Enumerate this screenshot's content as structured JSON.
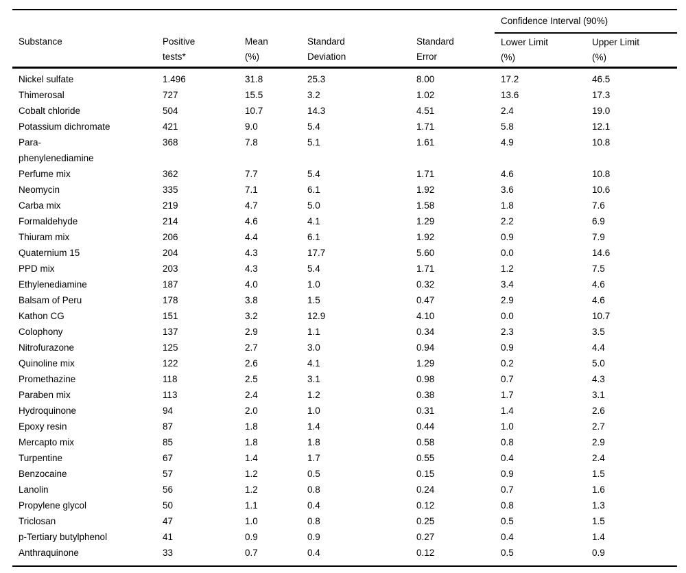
{
  "colors": {
    "background": "#ffffff",
    "text": "#000000",
    "rule": "#000000"
  },
  "table": {
    "spanner": "Confidence Interval (90%)",
    "columns": [
      "Substance",
      "Positive\ntests*",
      "Mean\n(%)",
      "Standard\nDeviation",
      "Standard\nError",
      "Lower Limit\n(%)",
      "Upper Limit\n(%)"
    ],
    "rows": [
      {
        "substance": "Nickel sulfate",
        "positive_tests": "1.496",
        "mean": "31.8",
        "sd": "25.3",
        "se": "8.00",
        "lower": "17.2",
        "upper": "46.5"
      },
      {
        "substance": "Thimerosal",
        "positive_tests": "727",
        "mean": "15.5",
        "sd": "3.2",
        "se": "1.02",
        "lower": "13.6",
        "upper": "17.3"
      },
      {
        "substance": "Cobalt chloride",
        "positive_tests": "504",
        "mean": "10.7",
        "sd": "14.3",
        "se": "4.51",
        "lower": "2.4",
        "upper": "19.0"
      },
      {
        "substance": "Potassium dichromate",
        "positive_tests": "421",
        "mean": "9.0",
        "sd": "5.4",
        "se": "1.71",
        "lower": "5.8",
        "upper": "12.1"
      },
      {
        "substance": "Para-\nphenylenediamine",
        "positive_tests": "368",
        "mean": "7.8",
        "sd": "5.1",
        "se": "1.61",
        "lower": "4.9",
        "upper": "10.8"
      },
      {
        "substance": "Perfume mix",
        "positive_tests": "362",
        "mean": "7.7",
        "sd": "5.4",
        "se": "1.71",
        "lower": "4.6",
        "upper": "10.8"
      },
      {
        "substance": "Neomycin",
        "positive_tests": "335",
        "mean": "7.1",
        "sd": "6.1",
        "se": "1.92",
        "lower": "3.6",
        "upper": "10.6"
      },
      {
        "substance": "Carba mix",
        "positive_tests": "219",
        "mean": "4.7",
        "sd": "5.0",
        "se": "1.58",
        "lower": "1.8",
        "upper": "7.6"
      },
      {
        "substance": "Formaldehyde",
        "positive_tests": "214",
        "mean": "4.6",
        "sd": "4.1",
        "se": "1.29",
        "lower": "2.2",
        "upper": "6.9"
      },
      {
        "substance": "Thiuram mix",
        "positive_tests": "206",
        "mean": "4.4",
        "sd": "6.1",
        "se": "1.92",
        "lower": "0.9",
        "upper": "7.9"
      },
      {
        "substance": "Quaternium 15",
        "positive_tests": "204",
        "mean": "4.3",
        "sd": "17.7",
        "se": "5.60",
        "lower": "0.0",
        "upper": "14.6"
      },
      {
        "substance": "PPD mix",
        "positive_tests": "203",
        "mean": "4.3",
        "sd": "5.4",
        "se": "1.71",
        "lower": "1.2",
        "upper": "7.5"
      },
      {
        "substance": "Ethylenediamine",
        "positive_tests": "187",
        "mean": "4.0",
        "sd": "1.0",
        "se": "0.32",
        "lower": "3.4",
        "upper": "4.6"
      },
      {
        "substance": "Balsam of Peru",
        "positive_tests": "178",
        "mean": "3.8",
        "sd": "1.5",
        "se": "0.47",
        "lower": "2.9",
        "upper": "4.6"
      },
      {
        "substance": "Kathon CG",
        "positive_tests": "151",
        "mean": "3.2",
        "sd": "12.9",
        "se": "4.10",
        "lower": "0.0",
        "upper": "10.7"
      },
      {
        "substance": "Colophony",
        "positive_tests": "137",
        "mean": "2.9",
        "sd": "1.1",
        "se": "0.34",
        "lower": "2.3",
        "upper": "3.5"
      },
      {
        "substance": "Nitrofurazone",
        "positive_tests": "125",
        "mean": "2.7",
        "sd": "3.0",
        "se": "0.94",
        "lower": "0.9",
        "upper": "4.4"
      },
      {
        "substance": "Quinoline mix",
        "positive_tests": "122",
        "mean": "2.6",
        "sd": "4.1",
        "se": "1.29",
        "lower": "0.2",
        "upper": "5.0"
      },
      {
        "substance": "Promethazine",
        "positive_tests": "118",
        "mean": "2.5",
        "sd": "3.1",
        "se": "0.98",
        "lower": "0.7",
        "upper": "4.3"
      },
      {
        "substance": "Paraben mix",
        "positive_tests": "113",
        "mean": "2.4",
        "sd": "1.2",
        "se": "0.38",
        "lower": "1.7",
        "upper": "3.1"
      },
      {
        "substance": "Hydroquinone",
        "positive_tests": "94",
        "mean": "2.0",
        "sd": "1.0",
        "se": "0.31",
        "lower": "1.4",
        "upper": "2.6"
      },
      {
        "substance": "Epoxy resin",
        "positive_tests": "87",
        "mean": "1.8",
        "sd": "1.4",
        "se": "0.44",
        "lower": "1.0",
        "upper": "2.7"
      },
      {
        "substance": "Mercapto mix",
        "positive_tests": "85",
        "mean": "1.8",
        "sd": "1.8",
        "se": "0.58",
        "lower": "0.8",
        "upper": "2.9"
      },
      {
        "substance": "Turpentine",
        "positive_tests": "67",
        "mean": "1.4",
        "sd": "1.7",
        "se": "0.55",
        "lower": "0.4",
        "upper": "2.4"
      },
      {
        "substance": "Benzocaine",
        "positive_tests": "57",
        "mean": "1.2",
        "sd": "0.5",
        "se": "0.15",
        "lower": "0.9",
        "upper": "1.5"
      },
      {
        "substance": "Lanolin",
        "positive_tests": "56",
        "mean": "1.2",
        "sd": "0.8",
        "se": "0.24",
        "lower": "0.7",
        "upper": "1.6"
      },
      {
        "substance": "Propylene glycol",
        "positive_tests": "50",
        "mean": "1.1",
        "sd": "0.4",
        "se": "0.12",
        "lower": "0.8",
        "upper": "1.3"
      },
      {
        "substance": "Triclosan",
        "positive_tests": "47",
        "mean": "1.0",
        "sd": "0.8",
        "se": "0.25",
        "lower": "0.5",
        "upper": "1.5"
      },
      {
        "substance": "p-Tertiary butylphenol",
        "positive_tests": "41",
        "mean": "0.9",
        "sd": "0.9",
        "se": "0.27",
        "lower": "0.4",
        "upper": "1.4"
      },
      {
        "substance": "Anthraquinone",
        "positive_tests": "33",
        "mean": "0.7",
        "sd": "0.4",
        "se": "0.12",
        "lower": "0.5",
        "upper": "0.9"
      }
    ]
  }
}
